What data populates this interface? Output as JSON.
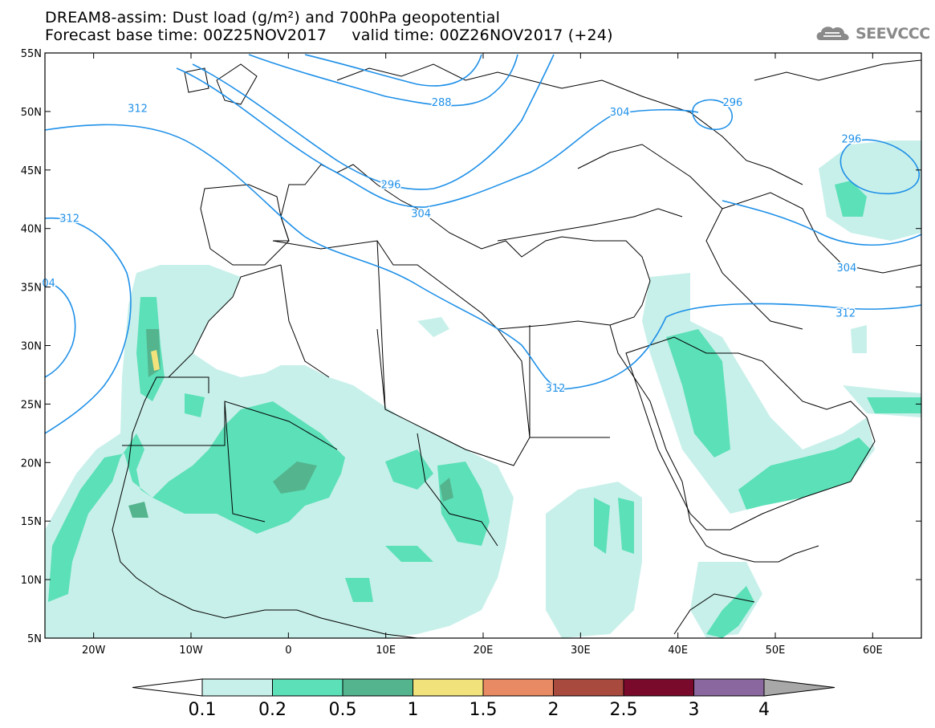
{
  "title": {
    "line1": "DREAM8-assim: Dust load (g/m²) and 700hPa geopotential",
    "line2": "Forecast base time: 00Z25NOV2017     valid time: 00Z26NOV2017 (+24)"
  },
  "logo": {
    "text": "SEEVCCC",
    "icon": "cloud-logo-icon"
  },
  "map": {
    "lon_range": [
      -25,
      65
    ],
    "lat_range": [
      5,
      55
    ],
    "lon_ticks": [
      {
        "value": -20,
        "label": "20W"
      },
      {
        "value": -10,
        "label": "10W"
      },
      {
        "value": 0,
        "label": "0"
      },
      {
        "value": 10,
        "label": "10E"
      },
      {
        "value": 20,
        "label": "20E"
      },
      {
        "value": 30,
        "label": "30E"
      },
      {
        "value": 40,
        "label": "40E"
      },
      {
        "value": 50,
        "label": "50E"
      },
      {
        "value": 60,
        "label": "60E"
      }
    ],
    "lat_ticks": [
      {
        "value": 55,
        "label": "55N"
      },
      {
        "value": 50,
        "label": "50N"
      },
      {
        "value": 45,
        "label": "45N"
      },
      {
        "value": 40,
        "label": "40N"
      },
      {
        "value": 35,
        "label": "35N"
      },
      {
        "value": 30,
        "label": "30N"
      },
      {
        "value": 25,
        "label": "25N"
      },
      {
        "value": 20,
        "label": "20N"
      },
      {
        "value": 15,
        "label": "15N"
      },
      {
        "value": 10,
        "label": "10N"
      },
      {
        "value": 5,
        "label": "5N"
      }
    ],
    "contour_labels": [
      {
        "text": "312",
        "lon": -16.5,
        "lat": 50.3
      },
      {
        "text": "312",
        "lon": -23.5,
        "lat": 40.9
      },
      {
        "text": "04",
        "lon": -25.3,
        "lat": 35.4
      },
      {
        "text": "288",
        "lon": 14.7,
        "lat": 50.8
      },
      {
        "text": "296",
        "lon": 9.5,
        "lat": 43.8
      },
      {
        "text": "304",
        "lon": 12.6,
        "lat": 41.3
      },
      {
        "text": "304",
        "lon": 33.0,
        "lat": 50.0
      },
      {
        "text": "296",
        "lon": 44.6,
        "lat": 50.8
      },
      {
        "text": "296",
        "lon": 56.8,
        "lat": 47.7
      },
      {
        "text": "304",
        "lon": 56.3,
        "lat": 36.7
      },
      {
        "text": "312",
        "lon": 56.2,
        "lat": 32.8
      },
      {
        "text": "312",
        "lon": 26.4,
        "lat": 26.4
      }
    ]
  },
  "colorbar": {
    "labels": [
      "0.1",
      "0.2",
      "0.5",
      "1",
      "1.5",
      "2",
      "2.5",
      "3",
      "4"
    ],
    "colors": [
      "#c8f0ea",
      "#5ce0b8",
      "#54b48e",
      "#f2e27c",
      "#e88a63",
      "#a84a3e",
      "#7a0a2c",
      "#8a679e"
    ],
    "under_color": "#ffffff",
    "over_color": "#a8a8a8"
  },
  "colors": {
    "contour": "#1e90e8",
    "land_border": "#000000"
  }
}
